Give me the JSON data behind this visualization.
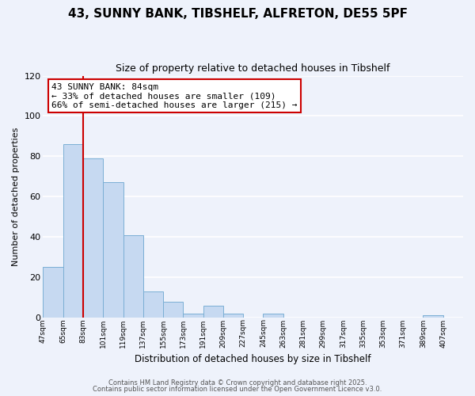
{
  "title1": "43, SUNNY BANK, TIBSHELF, ALFRETON, DE55 5PF",
  "title2": "Size of property relative to detached houses in Tibshelf",
  "xlabel": "Distribution of detached houses by size in Tibshelf",
  "ylabel": "Number of detached properties",
  "bar_values": [
    25,
    86,
    79,
    67,
    41,
    13,
    8,
    2,
    6,
    2,
    0,
    2,
    0,
    0,
    0,
    0,
    0,
    0,
    0,
    1,
    0
  ],
  "categories": [
    "47sqm",
    "65sqm",
    "83sqm",
    "101sqm",
    "119sqm",
    "137sqm",
    "155sqm",
    "173sqm",
    "191sqm",
    "209sqm",
    "227sqm",
    "245sqm",
    "263sqm",
    "281sqm",
    "299sqm",
    "317sqm",
    "335sqm",
    "353sqm",
    "371sqm",
    "389sqm",
    "407sqm"
  ],
  "bar_color": "#c6d9f1",
  "bar_edge_color": "#7bafd4",
  "vline_color": "#cc0000",
  "annotation_box_text": "43 SUNNY BANK: 84sqm\n← 33% of detached houses are smaller (109)\n66% of semi-detached houses are larger (215) →",
  "annotation_box_color": "#cc0000",
  "annotation_box_bg": "#ffffff",
  "ylim": [
    0,
    120
  ],
  "yticks": [
    0,
    20,
    40,
    60,
    80,
    100,
    120
  ],
  "footer1": "Contains HM Land Registry data © Crown copyright and database right 2025.",
  "footer2": "Contains public sector information licensed under the Open Government Licence v3.0.",
  "bg_color": "#eef2fb",
  "grid_color": "#ffffff"
}
